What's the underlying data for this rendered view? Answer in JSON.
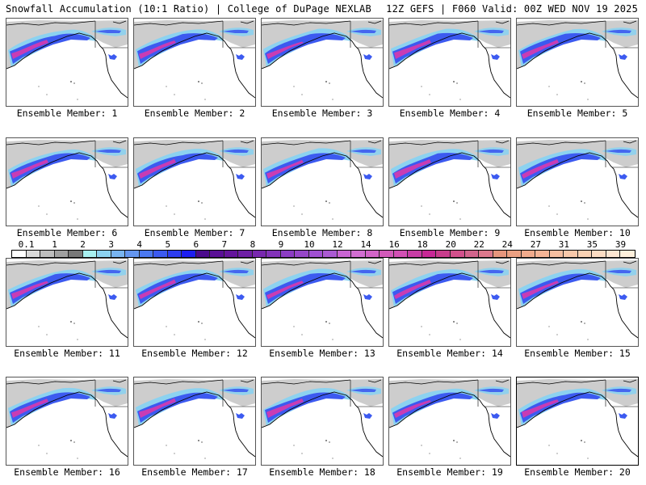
{
  "header": {
    "title_left": "Snowfall Accumulation (10:1 Ratio) | College of DuPage NEXLAB",
    "title_right": "12Z GEFS | F060 Valid: 00Z WED NOV 19 2025"
  },
  "panels": [
    {
      "label": "Ensemble Member: 1"
    },
    {
      "label": "Ensemble Member: 2"
    },
    {
      "label": "Ensemble Member: 3"
    },
    {
      "label": "Ensemble Member: 4"
    },
    {
      "label": "Ensemble Member: 5"
    },
    {
      "label": "Ensemble Member: 6"
    },
    {
      "label": "Ensemble Member: 7"
    },
    {
      "label": "Ensemble Member: 8"
    },
    {
      "label": "Ensemble Member: 9"
    },
    {
      "label": "Ensemble Member: 10"
    },
    {
      "label": "Ensemble Member: 11"
    },
    {
      "label": "Ensemble Member: 12"
    },
    {
      "label": "Ensemble Member: 13"
    },
    {
      "label": "Ensemble Member: 14"
    },
    {
      "label": "Ensemble Member: 15"
    },
    {
      "label": "Ensemble Member: 16"
    },
    {
      "label": "Ensemble Member: 17"
    },
    {
      "label": "Ensemble Member: 18"
    },
    {
      "label": "Ensemble Member: 19"
    },
    {
      "label": "Ensemble Member: 20"
    }
  ],
  "colorbar": {
    "tick_labels": [
      "0.1",
      "1",
      "2",
      "3",
      "4",
      "5",
      "6",
      "7",
      "8",
      "9",
      "10",
      "12",
      "14",
      "16",
      "18",
      "20",
      "22",
      "24",
      "27",
      "31",
      "35",
      "39"
    ],
    "colors": [
      "#ffffff",
      "#d9d9d9",
      "#bdbdbd",
      "#a0a0a0",
      "#787878",
      "#a8f0f0",
      "#8cd2f0",
      "#78b4f0",
      "#6496f0",
      "#4b78f0",
      "#3c5af0",
      "#2d3cf0",
      "#1e1ef0",
      "#4b0a8c",
      "#5a0f96",
      "#64149b",
      "#6e1ea5",
      "#7828af",
      "#8232b9",
      "#8c3cc3",
      "#9646c8",
      "#a050d2",
      "#aa5ad2",
      "#c864d2",
      "#d26ed2",
      "#d264c8",
      "#d25ab9",
      "#d250b4",
      "#c83ca5",
      "#c82896",
      "#c83c8c",
      "#d2508c",
      "#d2648c",
      "#dc788c",
      "#e6967d",
      "#eba082",
      "#f0aa8c",
      "#f5b496",
      "#f5bea0",
      "#f8c8aa",
      "#fad2b4",
      "#fcdcc3",
      "#fde6d2",
      "#fff0dc"
    ]
  },
  "map_colors": {
    "snow_light": "#c8c8c8",
    "snow_mid": "#8cd2f0",
    "snow_heavy": "#3c5af0",
    "snow_extreme": "#c83cb4"
  }
}
